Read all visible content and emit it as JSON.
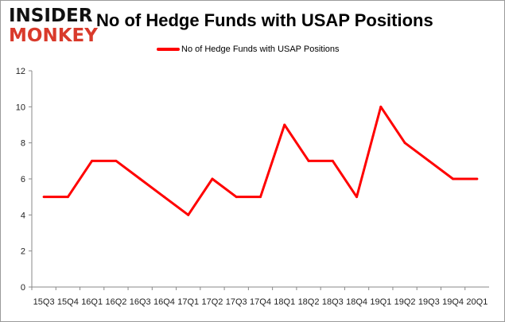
{
  "logo": {
    "line1": "INSIDER",
    "line2": "MONKEY"
  },
  "chart_data": {
    "type": "line",
    "title": "No of Hedge Funds with USAP Positions",
    "xlabel": "",
    "ylabel": "",
    "categories": [
      "15Q3",
      "15Q4",
      "16Q1",
      "16Q2",
      "16Q3",
      "16Q4",
      "17Q1",
      "17Q2",
      "17Q3",
      "17Q4",
      "18Q1",
      "18Q2",
      "18Q3",
      "18Q4",
      "19Q1",
      "19Q2",
      "19Q3",
      "19Q4",
      "20Q1"
    ],
    "series": [
      {
        "name": "No of Hedge Funds with USAP Positions",
        "color": "#ff0000",
        "values": [
          5,
          5,
          7,
          7,
          6,
          5,
          4,
          6,
          5,
          5,
          9,
          7,
          7,
          5,
          10,
          8,
          7,
          6,
          6
        ]
      }
    ],
    "ylim": [
      0,
      12
    ],
    "yticks": [
      0,
      2,
      4,
      6,
      8,
      10,
      12
    ],
    "grid": false,
    "legend": "top"
  }
}
